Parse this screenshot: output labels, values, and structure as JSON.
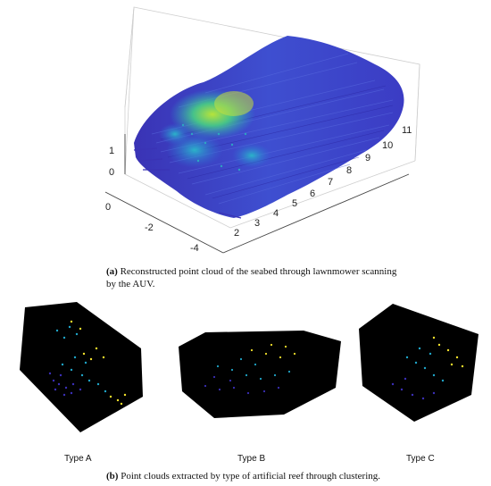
{
  "figure_a": {
    "label": "(a)",
    "caption": "Reconstructed point cloud of the seabed through lawnmower scanning by the AUV.",
    "z_ticks": [
      "1",
      "0"
    ],
    "left_ticks": [
      "0",
      "-2",
      "-4"
    ],
    "bottom_ticks": [
      "2",
      "3",
      "4",
      "5",
      "6",
      "7",
      "8",
      "9",
      "10",
      "11"
    ]
  },
  "figure_b": {
    "label": "(b)",
    "caption": "Point clouds extracted by type of artificial reef through clustering.",
    "panels": [
      {
        "title": "Type A"
      },
      {
        "title": "Type B"
      },
      {
        "title": "Type C"
      }
    ]
  },
  "colors": {
    "low": "#3b2fb8",
    "mid": "#1fa6c9",
    "high": "#f4e22c",
    "panel_bg": "#000000"
  }
}
